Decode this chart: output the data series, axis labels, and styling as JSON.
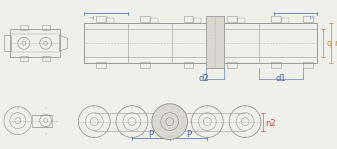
{
  "bg_color": "#f0f0eb",
  "line_color": "#999999",
  "dashed_color": "#bbbbbb",
  "dim_color_blue": "#4466aa",
  "dim_color_orange": "#cc8833",
  "dim_color_red": "#cc4444",
  "fill_color": "#d8d8d0",
  "label_d2": "d2",
  "label_d1": "d1",
  "label_q": "q",
  "label_r": "r",
  "label_n2": "n2",
  "label_p": "P"
}
